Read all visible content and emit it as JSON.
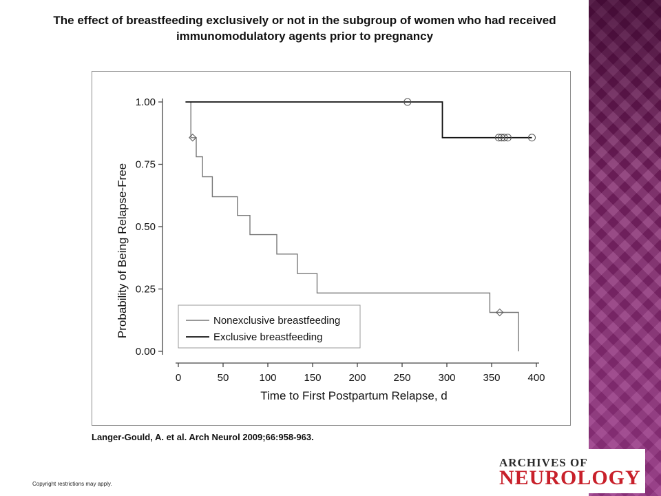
{
  "slide": {
    "title": "The effect of breastfeeding exclusively or not in the subgroup of women who had received immunomodulatory agents prior to pregnancy",
    "citation": "Langer-Gould, A. et al. Arch Neurol 2009;66:958-963.",
    "copyright": "Copyright restrictions may apply.",
    "logo_top": "ARCHIVES OF",
    "logo_bottom": "NEUROLOGY",
    "accent_color": "#7a1f63",
    "logo_color": "#c8202a"
  },
  "chart_data": {
    "type": "line",
    "subtype": "kaplan-meier step",
    "title": "",
    "xlabel": "Time to First Postpartum Relapse, d",
    "ylabel": "Probability of Being Relapse-Free",
    "xlim": [
      0,
      400
    ],
    "ylim": [
      0,
      1
    ],
    "xticks": [
      0,
      50,
      100,
      150,
      200,
      250,
      300,
      350,
      400
    ],
    "yticks": [
      0.0,
      0.25,
      0.5,
      0.75,
      1.0
    ],
    "ytick_labels": [
      "0.00",
      "0.25",
      "0.50",
      "0.75",
      "1.00"
    ],
    "grid": false,
    "legend_position": "bottom-left",
    "series": [
      {
        "name": "Nonexclusive breastfeeding",
        "color": "#777777",
        "steps": [
          [
            14,
            1.0
          ],
          [
            14,
            0.857
          ],
          [
            20,
            0.857
          ],
          [
            20,
            0.78
          ],
          [
            27,
            0.78
          ],
          [
            27,
            0.7
          ],
          [
            38,
            0.7
          ],
          [
            38,
            0.62
          ],
          [
            66,
            0.62
          ],
          [
            66,
            0.545
          ],
          [
            80,
            0.545
          ],
          [
            80,
            0.468
          ],
          [
            110,
            0.468
          ],
          [
            110,
            0.39
          ],
          [
            133,
            0.39
          ],
          [
            133,
            0.312
          ],
          [
            155,
            0.312
          ],
          [
            155,
            0.234
          ],
          [
            348,
            0.234
          ],
          [
            348,
            0.156
          ],
          [
            380,
            0.156
          ],
          [
            380,
            0.0
          ]
        ],
        "censored": [
          [
            16,
            0.857
          ],
          [
            359,
            0.156
          ]
        ],
        "censor_marker": "diamond"
      },
      {
        "name": "Exclusive breastfeeding",
        "color": "#111111",
        "steps": [
          [
            8,
            1.0
          ],
          [
            295,
            1.0
          ],
          [
            295,
            0.857
          ],
          [
            395,
            0.857
          ]
        ],
        "censored": [
          [
            256,
            1.0
          ],
          [
            358,
            0.857
          ],
          [
            361,
            0.857
          ],
          [
            364,
            0.857
          ],
          [
            368,
            0.857
          ],
          [
            395,
            0.857
          ]
        ],
        "censor_marker": "circle"
      }
    ]
  }
}
